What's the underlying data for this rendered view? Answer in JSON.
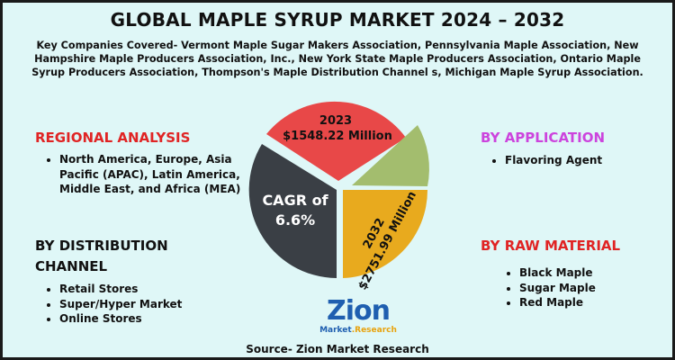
{
  "title": "GLOBAL MAPLE SYRUP MARKET 2024 – 2032",
  "companies": "Key Companies Covered- Vermont Maple Sugar Makers Association, Pennsylvania Maple Association, New Hampshire Maple Producers Association, Inc., New York State Maple Producers Association, Ontario Maple Syrup Producers Association, Thompson's Maple Distribution Channel s, Michigan Maple Syrup Association.",
  "regional": {
    "title": "REGIONAL ANALYSIS",
    "items": [
      "North America, Europe, Asia Pacific (APAC), Latin America, Middle East, and Africa (MEA)"
    ]
  },
  "distribution": {
    "title_line1": "BY DISTRIBUTION",
    "title_line2": "CHANNEL",
    "items": [
      "Retail Stores",
      "Super/Hyper Market",
      "Online Stores"
    ]
  },
  "application": {
    "title": "BY APPLICATION",
    "items": [
      "Flavoring Agent"
    ]
  },
  "raw_material": {
    "title": "BY RAW MATERIAL",
    "items": [
      "Black Maple",
      "Sugar Maple",
      "Red Maple"
    ]
  },
  "pie": {
    "year_2023": "2023",
    "value_2023": "$1548.22 Million",
    "cagr_line1": "CAGR of",
    "cagr_line2": "6.6%",
    "year_2032": "2032",
    "value_2032": "$2751.99 Million"
  },
  "colors": {
    "red": "#e84848",
    "green": "#a3bd6e",
    "dark": "#3a3f45",
    "gold": "#e8aa1e",
    "heading_red": "#e02424",
    "heading_purple": "#cc44dd"
  },
  "logo": {
    "main": "Zion",
    "sub_a": "Market",
    "sub_b": ".Research"
  },
  "source": "Source- Zion Market Research"
}
